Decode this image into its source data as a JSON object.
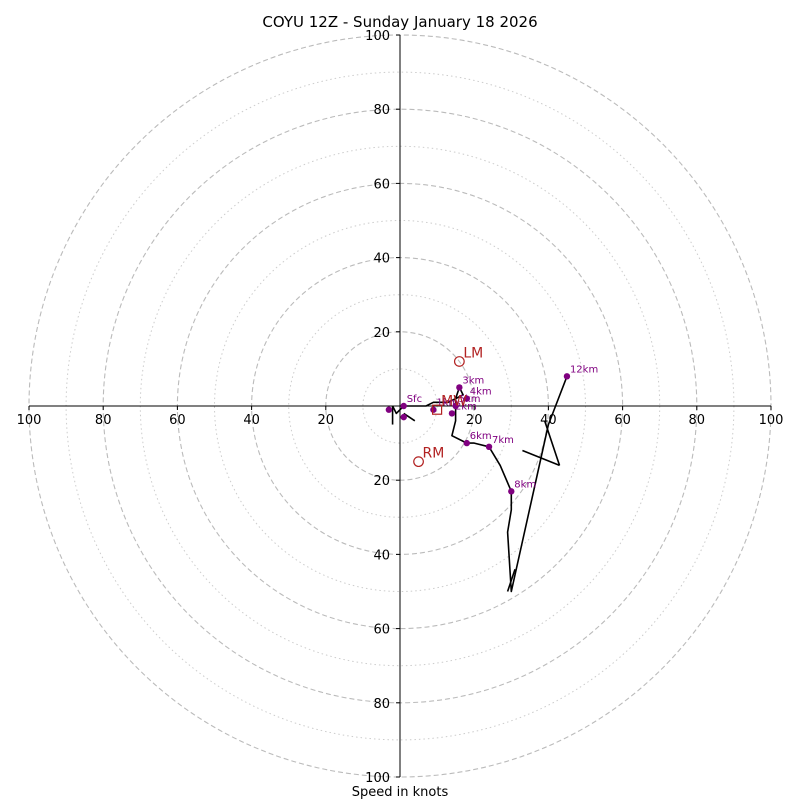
{
  "chart_data": {
    "type": "hodograph",
    "title": "COYU 12Z - Sunday January 18 2026",
    "xlabel": "Speed in knots",
    "xlim": [
      -100,
      100
    ],
    "ylim": [
      -100,
      100
    ],
    "major_rings": [
      20,
      40,
      60,
      80,
      100
    ],
    "minor_rings": [
      10,
      30,
      50,
      70,
      90
    ],
    "tick_labels": {
      "left": [
        "100",
        "80",
        "60",
        "40",
        "20"
      ],
      "right": [
        "20",
        "40",
        "60",
        "80",
        "100"
      ],
      "top": [
        "20",
        "40",
        "60",
        "80",
        "100"
      ],
      "bottom": [
        "20",
        "40",
        "60",
        "80",
        "100"
      ]
    },
    "colors": {
      "trace": "#000000",
      "points": "#800080",
      "motion": "#b22222",
      "grid": "#bbbbbb"
    },
    "trace": [
      [
        -2,
        0
      ],
      [
        -1,
        -2
      ],
      [
        1,
        0
      ],
      [
        4,
        0
      ],
      [
        7,
        0
      ],
      [
        9,
        1
      ],
      [
        11,
        1
      ],
      [
        13,
        1
      ],
      [
        15,
        2
      ],
      [
        17,
        3
      ],
      [
        16,
        5
      ],
      [
        15,
        2
      ],
      [
        15,
        0
      ],
      [
        15,
        -2
      ],
      [
        15,
        -4
      ],
      [
        14,
        -8
      ],
      [
        18,
        -10
      ],
      [
        20,
        -10
      ],
      [
        24,
        -11
      ],
      [
        27,
        -16
      ],
      [
        30,
        -23
      ],
      [
        30,
        -28
      ],
      [
        29,
        -34
      ],
      [
        30,
        -50
      ],
      [
        40,
        -5
      ],
      [
        45,
        8
      ]
    ],
    "levels": [
      {
        "label": "Sfc",
        "u": 1,
        "v": 0
      },
      {
        "label": "1km",
        "u": 9,
        "v": -1
      },
      {
        "label": "2km",
        "u": 14,
        "v": -2
      },
      {
        "label": "3km",
        "u": 16,
        "v": 5
      },
      {
        "label": "4km",
        "u": 18,
        "v": 2
      },
      {
        "label": "5km",
        "u": 15,
        "v": 0
      },
      {
        "label": "6km",
        "u": 18,
        "v": -10
      },
      {
        "label": "7km",
        "u": 24,
        "v": -11
      },
      {
        "label": "8km",
        "u": 30,
        "v": -23
      },
      {
        "label": "12km",
        "u": 45,
        "v": 8
      }
    ],
    "extra_points": [
      {
        "u": -3,
        "v": -1
      },
      {
        "u": 1,
        "v": -3
      }
    ],
    "wind_barbs": [
      {
        "from": [
          -2,
          0
        ],
        "to": [
          -2,
          -5
        ]
      },
      {
        "from": [
          4,
          -4
        ],
        "to": [
          1,
          -2
        ]
      },
      {
        "from": [
          39,
          -4
        ],
        "to": [
          43,
          -16
        ]
      },
      {
        "from": [
          43,
          -16
        ],
        "to": [
          33,
          -12
        ]
      },
      {
        "from": [
          29,
          -50
        ],
        "to": [
          31,
          -44
        ]
      }
    ],
    "storm_motions": [
      {
        "label": "LM",
        "u": 16,
        "v": 12,
        "marker": "circle"
      },
      {
        "label": "RM",
        "u": 5,
        "v": -15,
        "marker": "circle"
      },
      {
        "label": "MW",
        "u": 10,
        "v": -1,
        "marker": "square"
      }
    ]
  }
}
